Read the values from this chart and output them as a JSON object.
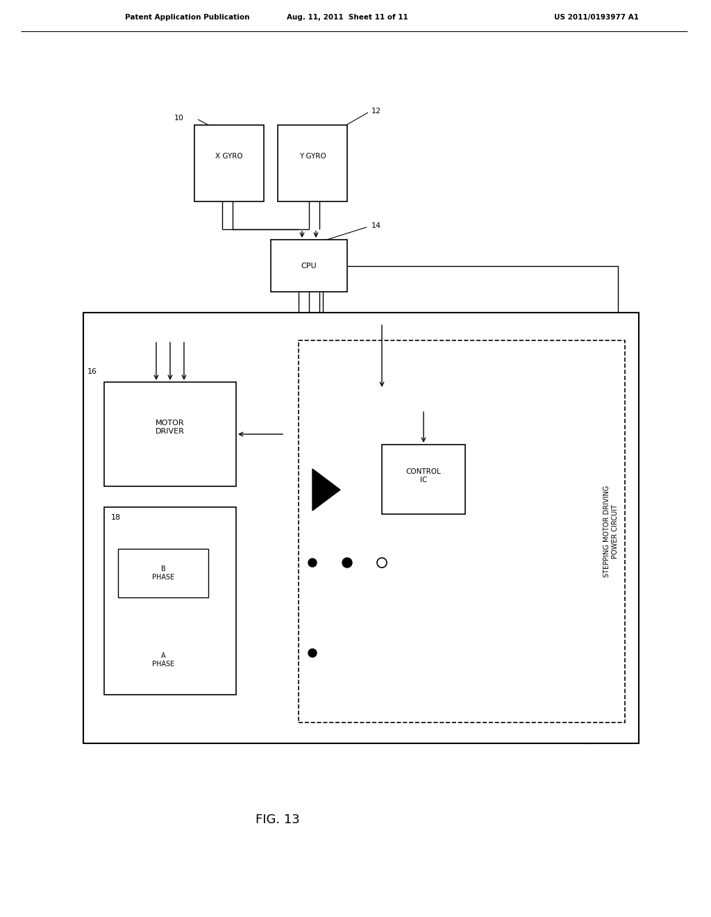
{
  "title": "FIG. 13",
  "header_left": "Patent Application Publication",
  "header_center": "Aug. 11, 2011  Sheet 11 of 11",
  "header_right": "US 2011/0193977 A1",
  "bg_color": "#ffffff",
  "line_color": "#000000",
  "fig_width": 10.24,
  "fig_height": 13.2
}
